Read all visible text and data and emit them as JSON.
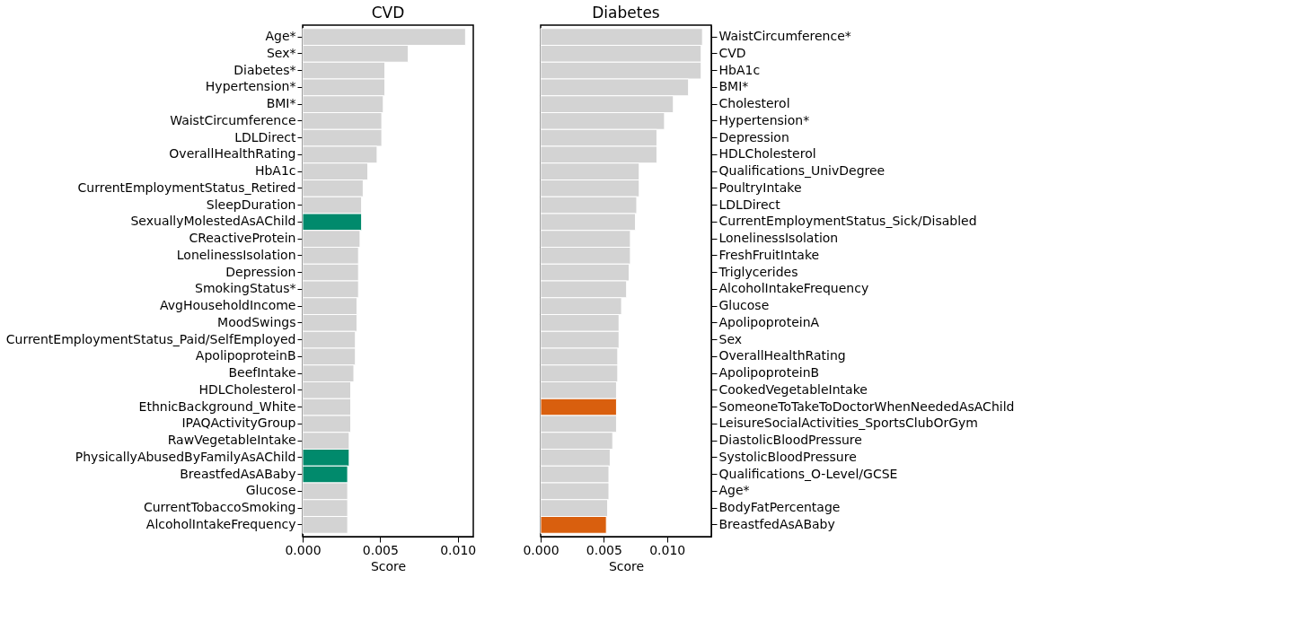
{
  "chart_data": [
    {
      "type": "bar",
      "orientation": "horizontal",
      "title": "CVD",
      "xlabel": "Score",
      "grid": false,
      "categories": [
        "Age*",
        "Sex*",
        "Diabetes*",
        "Hypertension*",
        "BMI*",
        "WaistCircumference",
        "LDLDirect",
        "OverallHealthRating",
        "HbA1c",
        "CurrentEmploymentStatus_Retired",
        "SleepDuration",
        "SexuallyMolestedAsAChild",
        "CReactiveProtein",
        "LonelinessIsolation",
        "Depression",
        "SmokingStatus*",
        "AvgHouseholdIncome",
        "MoodSwings",
        "CurrentEmploymentStatus_Paid/SelfEmployed",
        "ApolipoproteinB",
        "BeefIntake",
        "HDLCholesterol",
        "EthnicBackground_White",
        "IPAQActivityGroup",
        "RawVegetableIntake",
        "PhysicallyAbusedByFamilyAsAChild",
        "BreastfedAsABaby",
        "Glucose",
        "CurrentTobaccoSmoking",
        "AlcoholIntakeFrequency"
      ],
      "values": [
        0.0105,
        0.0068,
        0.0053,
        0.0053,
        0.0052,
        0.0051,
        0.0051,
        0.0048,
        0.0042,
        0.0039,
        0.0038,
        0.0038,
        0.0037,
        0.0036,
        0.0036,
        0.0036,
        0.0035,
        0.0035,
        0.0034,
        0.0034,
        0.0033,
        0.0031,
        0.0031,
        0.0031,
        0.003,
        0.003,
        0.0029,
        0.0029,
        0.0029,
        0.0029
      ],
      "colors": [
        "#d3d3d3",
        "#d3d3d3",
        "#d3d3d3",
        "#d3d3d3",
        "#d3d3d3",
        "#d3d3d3",
        "#d3d3d3",
        "#d3d3d3",
        "#d3d3d3",
        "#d3d3d3",
        "#d3d3d3",
        "#018a6c",
        "#d3d3d3",
        "#d3d3d3",
        "#d3d3d3",
        "#d3d3d3",
        "#d3d3d3",
        "#d3d3d3",
        "#d3d3d3",
        "#d3d3d3",
        "#d3d3d3",
        "#d3d3d3",
        "#d3d3d3",
        "#d3d3d3",
        "#d3d3d3",
        "#018a6c",
        "#018a6c",
        "#d3d3d3",
        "#d3d3d3",
        "#d3d3d3"
      ],
      "xlim": [
        0,
        0.011
      ],
      "xticks": [
        {
          "value": 0,
          "label": "0.000"
        },
        {
          "value": 0.005,
          "label": "0.005"
        },
        {
          "value": 0.01,
          "label": "0.010"
        }
      ]
    },
    {
      "type": "bar",
      "orientation": "horizontal",
      "title": "Diabetes",
      "xlabel": "Score",
      "grid": false,
      "categories": [
        "WaistCircumference*",
        "CVD",
        "HbA1c",
        "BMI*",
        "Cholesterol",
        "Hypertension*",
        "Depression",
        "HDLCholesterol",
        "Qualifications_UnivDegree",
        "PoultryIntake",
        "LDLDirect",
        "CurrentEmploymentStatus_Sick/Disabled",
        "LonelinessIsolation",
        "FreshFruitIntake",
        "Triglycerides",
        "AlcoholIntakeFrequency",
        "Glucose",
        "ApolipoproteinA",
        "Sex",
        "OverallHealthRating",
        "ApolipoproteinB",
        "CookedVegetableIntake",
        "SomeoneToTakeToDoctorWhenNeededAsAChild",
        "LeisureSocialActivities_SportsClubOrGym",
        "DiastolicBloodPressure",
        "SystolicBloodPressure",
        "Qualifications_O-Level/GCSE",
        "Age*",
        "BodyFatPercentage",
        "BreastfedAsABaby"
      ],
      "values": [
        0.0128,
        0.0127,
        0.0127,
        0.0117,
        0.0105,
        0.0098,
        0.0092,
        0.0092,
        0.0078,
        0.0078,
        0.0076,
        0.0075,
        0.0071,
        0.0071,
        0.007,
        0.0068,
        0.0064,
        0.0062,
        0.0062,
        0.0061,
        0.0061,
        0.006,
        0.006,
        0.006,
        0.0057,
        0.0055,
        0.0054,
        0.0054,
        0.0053,
        0.0052
      ],
      "colors": [
        "#d3d3d3",
        "#d3d3d3",
        "#d3d3d3",
        "#d3d3d3",
        "#d3d3d3",
        "#d3d3d3",
        "#d3d3d3",
        "#d3d3d3",
        "#d3d3d3",
        "#d3d3d3",
        "#d3d3d3",
        "#d3d3d3",
        "#d3d3d3",
        "#d3d3d3",
        "#d3d3d3",
        "#d3d3d3",
        "#d3d3d3",
        "#d3d3d3",
        "#d3d3d3",
        "#d3d3d3",
        "#d3d3d3",
        "#d3d3d3",
        "#d95f0e",
        "#d3d3d3",
        "#d3d3d3",
        "#d3d3d3",
        "#d3d3d3",
        "#d3d3d3",
        "#d3d3d3",
        "#d95f0e"
      ],
      "xlim": [
        0,
        0.0135
      ],
      "xticks": [
        {
          "value": 0,
          "label": "0.000"
        },
        {
          "value": 0.005,
          "label": "0.005"
        },
        {
          "value": 0.01,
          "label": "0.010"
        }
      ]
    }
  ]
}
